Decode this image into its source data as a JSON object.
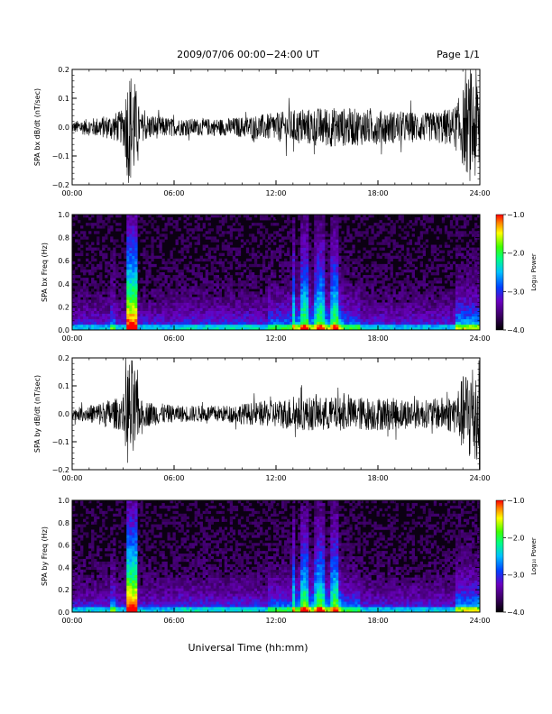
{
  "header": {
    "title": "2009/07/06  00:00−24:00 UT",
    "page": "Page 1/1"
  },
  "xlabel": "Universal Time (hh:mm)",
  "chart_data": [
    {
      "type": "line",
      "ylabel": "SPA bx dB/dt (nT/sec)",
      "xlim": [
        "00:00",
        "24:00"
      ],
      "xticks": [
        "00:00",
        "06:00",
        "12:00",
        "18:00",
        "24:00"
      ],
      "ylim": [
        -0.2,
        0.2
      ],
      "yticks": [
        "0.2",
        "0.1",
        "0.0",
        "−0.1",
        "−0.2"
      ],
      "x_hours": [
        0,
        1,
        2,
        3,
        3.3,
        3.6,
        4,
        6,
        9,
        12,
        13,
        15,
        18,
        21,
        22.5,
        23.5,
        24
      ],
      "envelope": [
        0.02,
        0.03,
        0.04,
        0.06,
        0.2,
        0.2,
        0.05,
        0.03,
        0.03,
        0.05,
        0.06,
        0.07,
        0.06,
        0.05,
        0.07,
        0.2,
        0.2
      ]
    },
    {
      "type": "heatmap",
      "ylabel": "SPA bx Freq (Hz)",
      "xlim": [
        "00:00",
        "24:00"
      ],
      "xticks": [
        "00:00",
        "06:00",
        "12:00",
        "18:00",
        "24:00"
      ],
      "ylim": [
        0.0,
        1.0
      ],
      "yticks": [
        "1.0",
        "0.8",
        "0.6",
        "0.4",
        "0.2",
        "0.0"
      ],
      "colorbar": {
        "label": "Log₁₀ Power",
        "ticks": [
          "−1.0",
          "−2.0",
          "−3.0",
          "−4.0"
        ],
        "range": [
          -4.0,
          -1.0
        ]
      }
    },
    {
      "type": "line",
      "ylabel": "SPA by dB/dt (nT/sec)",
      "xlim": [
        "00:00",
        "24:00"
      ],
      "xticks": [
        "00:00",
        "06:00",
        "12:00",
        "18:00",
        "24:00"
      ],
      "ylim": [
        -0.2,
        0.2
      ],
      "yticks": [
        "0.2",
        "0.1",
        "0.0",
        "−0.1",
        "−0.2"
      ],
      "x_hours": [
        0,
        1,
        2,
        3,
        3.3,
        3.6,
        4,
        6,
        9,
        12,
        13,
        15,
        18,
        21,
        22.5,
        23.5,
        24
      ],
      "envelope": [
        0.02,
        0.03,
        0.05,
        0.06,
        0.2,
        0.2,
        0.05,
        0.03,
        0.03,
        0.05,
        0.06,
        0.06,
        0.06,
        0.05,
        0.07,
        0.2,
        0.2
      ]
    },
    {
      "type": "heatmap",
      "ylabel": "SPA by Freq (Hz)",
      "xlim": [
        "00:00",
        "24:00"
      ],
      "xticks": [
        "00:00",
        "06:00",
        "12:00",
        "18:00",
        "24:00"
      ],
      "ylim": [
        0.0,
        1.0
      ],
      "yticks": [
        "1.0",
        "0.8",
        "0.6",
        "0.4",
        "0.2",
        "0.0"
      ],
      "colorbar": {
        "label": "Log₁₀ Power",
        "ticks": [
          "−1.0",
          "−2.0",
          "−3.0",
          "−4.0"
        ],
        "range": [
          -4.0,
          -1.0
        ]
      }
    }
  ]
}
